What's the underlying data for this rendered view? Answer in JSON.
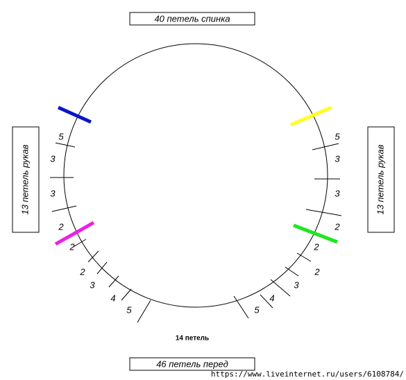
{
  "top_label": "40 петель спинка",
  "bottom_label": "46 петель перед",
  "left_label": "13 петель рукав",
  "right_label": "13 петель рукав",
  "bottom_count": "14 петель",
  "left_numbers": [
    "5",
    "3",
    "3",
    "2",
    "2",
    "2",
    "3",
    "4",
    "5"
  ],
  "right_numbers": [
    "5",
    "3",
    "3",
    "2",
    "2",
    "2",
    "3",
    "4",
    "5"
  ],
  "url": "https://www.liveinternet.ru/users/6108784/"
}
